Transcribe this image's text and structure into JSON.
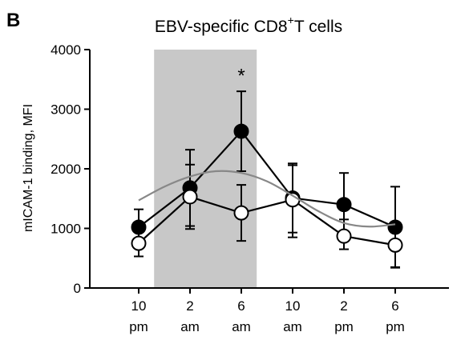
{
  "panel_label": "B",
  "chart_data": {
    "type": "line",
    "title_main": "EBV-specific CD8",
    "title_sup": "+",
    "title_tail": "T cells",
    "ylabel": "mICAM-1 binding, MFI",
    "xlabel": "",
    "ylim": [
      0,
      4000
    ],
    "yticks": [
      0,
      1000,
      2000,
      3000,
      4000
    ],
    "categories": [
      {
        "value": "10",
        "unit": "pm"
      },
      {
        "value": "2",
        "unit": "am"
      },
      {
        "value": "6",
        "unit": "am"
      },
      {
        "value": "10",
        "unit": "am"
      },
      {
        "value": "2",
        "unit": "pm"
      },
      {
        "value": "6",
        "unit": "pm"
      }
    ],
    "shaded_region": {
      "from_index": 0.3,
      "to_index": 2.3,
      "color": "#c8c8c8"
    },
    "series": [
      {
        "marker": "filled-circle",
        "color": "#000000",
        "values": [
          1020,
          1680,
          2630,
          1510,
          1400,
          1020
        ],
        "error_upper": [
          1320,
          2320,
          3300,
          2090,
          1930,
          1700
        ],
        "error_lower": [
          720,
          1040,
          1960,
          930,
          870,
          340
        ]
      },
      {
        "marker": "open-circle",
        "color": "#000000",
        "values": [
          750,
          1530,
          1260,
          1480,
          870,
          720
        ],
        "error_upper": [
          960,
          2070,
          1730,
          2060,
          1150,
          1060
        ],
        "error_lower": [
          530,
          990,
          790,
          850,
          650,
          350
        ]
      },
      {
        "marker": "none",
        "style": "curve",
        "color": "#888888",
        "x": [
          0,
          0.5,
          1,
          1.5,
          2,
          2.5,
          3,
          3.5,
          4,
          4.5,
          5
        ],
        "values": [
          1470,
          1700,
          1870,
          1960,
          1930,
          1790,
          1550,
          1290,
          1090,
          1030,
          1070
        ]
      }
    ],
    "annotations": [
      {
        "text": "*",
        "at_index": 2,
        "y": 3620
      }
    ]
  }
}
